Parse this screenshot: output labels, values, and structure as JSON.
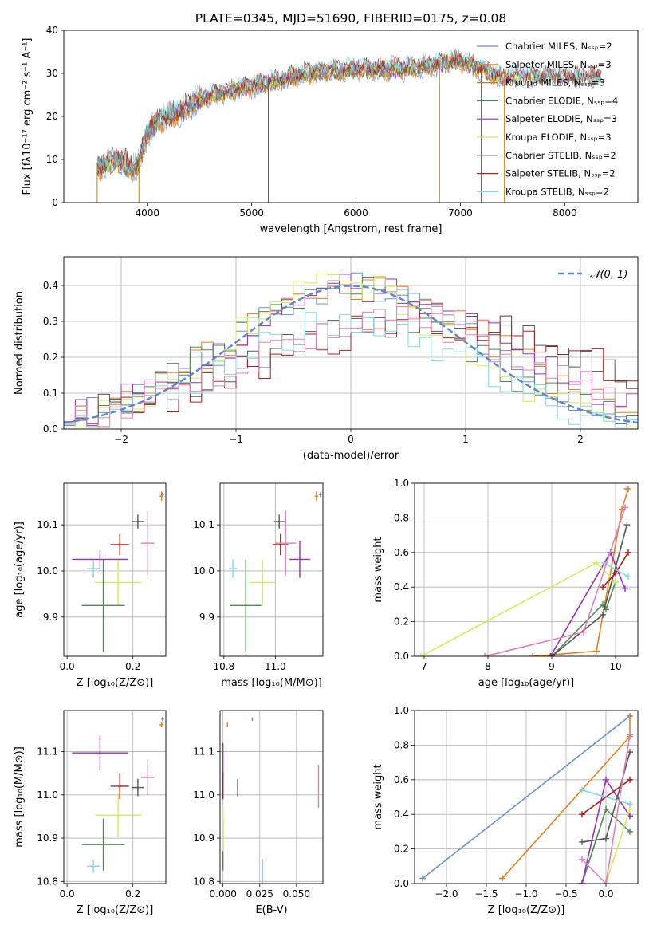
{
  "chart_data": [
    {
      "id": "spectrum",
      "type": "line",
      "title": "PLATE=0345, MJD=51690, FIBERID=0175, z=0.08",
      "xlabel": "wavelength [Angstrom, rest frame]",
      "ylabel": "Flux [fλ10⁻¹⁷ erg cm⁻² s⁻¹ A⁻¹]",
      "xlim": [
        3200,
        8700
      ],
      "ylim": [
        0,
        40
      ],
      "xticks": [
        "4000",
        "5000",
        "6000",
        "7000",
        "8000"
      ],
      "yticks": [
        "0",
        "10",
        "20",
        "30",
        "40"
      ],
      "grid": false,
      "legend_position": "upper right",
      "series": [
        {
          "name": "Chabrier MILES, Nₛₛₚ=2",
          "color": "#6a8fd8"
        },
        {
          "name": "Salpeter MILES, Nₛₛₚ=3",
          "color": "#e87f1e"
        },
        {
          "name": "Kroupa MILES, Nₛₛₚ=3",
          "color": "#c27f12"
        },
        {
          "name": "Chabrier ELODIE, Nₛₛₚ=4",
          "color": "#4e8a57"
        },
        {
          "name": "Salpeter ELODIE, Nₛₛₚ=3",
          "color": "#9a2fb5"
        },
        {
          "name": "Kroupa ELODIE, Nₛₛₚ=3",
          "color": "#d2ec5c"
        },
        {
          "name": "Chabrier STELIB, Nₛₛₚ=2",
          "color": "#555555"
        },
        {
          "name": "Salpeter STELIB, Nₛₛₚ=2",
          "color": "#b11a1a"
        },
        {
          "name": "Kroupa STELIB, Nₛₛₚ=2",
          "color": "#7fd8e3"
        }
      ],
      "trend": {
        "x": [
          3500,
          3700,
          3900,
          4000,
          4100,
          4300,
          4500,
          4800,
          5000,
          5200,
          5500,
          6000,
          6500,
          7000,
          7400
        ],
        "y": [
          8,
          10,
          8,
          16,
          19,
          21,
          24,
          26,
          27,
          28,
          30,
          31,
          31,
          33,
          29
        ]
      }
    },
    {
      "id": "residuals",
      "type": "line",
      "xlabel": "(data-model)/error",
      "ylabel": "Normed distribution",
      "xlim": [
        -2.5,
        2.5
      ],
      "ylim": [
        0,
        0.48
      ],
      "xticks": [
        "−2",
        "−1",
        "0",
        "1",
        "2"
      ],
      "yticks": [
        "0.0",
        "0.1",
        "0.2",
        "0.3",
        "0.4"
      ],
      "grid": true,
      "legend_position": "upper right",
      "legend": "𝒩(0, 1)",
      "gaussian": {
        "mean": 0,
        "sigma": 1,
        "color": "#5b86d6"
      },
      "step_colors": [
        "#6a8fd8",
        "#e87f1e",
        "#4e8a57",
        "#9a2fb5",
        "#d2ec5c",
        "#555555",
        "#b11a1a",
        "#7fd8e3",
        "#e37fb5"
      ]
    },
    {
      "id": "age_vs_Z",
      "type": "scatter",
      "xlabel": "Z [log₁₀(Z/Z⊙)]",
      "ylabel": "age  [log₁₀(age/yr)]",
      "xlim": [
        -0.01,
        0.3
      ],
      "ylim": [
        9.815,
        10.19
      ],
      "xticks": [
        "0.0",
        "0.2"
      ],
      "yticks": [
        "9.9",
        "10.0",
        "10.1"
      ],
      "grid": true,
      "points": [
        {
          "color": "#7fd8e3",
          "x": 0.08,
          "y": 10.005,
          "xerr": 0.02,
          "yerr": 0.02
        },
        {
          "color": "#d2ec5c",
          "x": 0.155,
          "y": 9.975,
          "xerr": 0.07,
          "yerr": 0.05
        },
        {
          "color": "#4e8a57",
          "x": 0.11,
          "y": 9.925,
          "xerr": 0.065,
          "yerr": 0.1
        },
        {
          "color": "#9a2fb5",
          "x": 0.1,
          "y": 10.025,
          "xerr": 0.085,
          "yerr": 0.02
        },
        {
          "color": "#b11a1a",
          "x": 0.16,
          "y": 10.057,
          "xerr": 0.028,
          "yerr": 0.023
        },
        {
          "color": "#555555",
          "x": 0.215,
          "y": 10.107,
          "xerr": 0.018,
          "yerr": 0.015
        },
        {
          "color": "#e37fb5",
          "x": 0.245,
          "y": 10.06,
          "xerr": 0.02,
          "yerr": 0.07
        },
        {
          "color": "#e87f1e",
          "x": 0.287,
          "y": 10.162,
          "xerr": 0.006,
          "yerr": 0.01
        },
        {
          "color": "#6a8fd8",
          "x": 0.29,
          "y": 10.165,
          "xerr": 0.004,
          "yerr": 0.005
        }
      ]
    },
    {
      "id": "age_vs_mass",
      "type": "scatter",
      "xlabel": "mass [log₁₀(M/M⊙)]",
      "ylabel": "",
      "xlim": [
        10.785,
        11.185
      ],
      "ylim": [
        9.815,
        10.19
      ],
      "xticks": [
        "10.8",
        "11.0"
      ],
      "yticks": [
        "9.9",
        "10.0",
        "10.1"
      ],
      "grid": true,
      "points": [
        {
          "color": "#7fd8e3",
          "x": 10.835,
          "y": 10.005,
          "xerr": 0.015,
          "yerr": 0.02
        },
        {
          "color": "#4e8a57",
          "x": 10.885,
          "y": 9.925,
          "xerr": 0.06,
          "yerr": 0.1
        },
        {
          "color": "#d2ec5c",
          "x": 10.95,
          "y": 9.975,
          "xerr": 0.05,
          "yerr": 0.05
        },
        {
          "color": "#555555",
          "x": 11.015,
          "y": 10.107,
          "xerr": 0.02,
          "yerr": 0.015
        },
        {
          "color": "#b11a1a",
          "x": 11.02,
          "y": 10.057,
          "xerr": 0.03,
          "yerr": 0.023
        },
        {
          "color": "#e37fb5",
          "x": 11.04,
          "y": 10.06,
          "xerr": 0.04,
          "yerr": 0.07
        },
        {
          "color": "#9a2fb5",
          "x": 11.095,
          "y": 10.025,
          "xerr": 0.04,
          "yerr": 0.04
        },
        {
          "color": "#e87f1e",
          "x": 11.16,
          "y": 10.162,
          "xerr": 0.006,
          "yerr": 0.01
        },
        {
          "color": "#6a8fd8",
          "x": 11.175,
          "y": 10.165,
          "xerr": 0.005,
          "yerr": 0.005
        }
      ]
    },
    {
      "id": "weight_vs_age",
      "type": "line",
      "xlabel": "age  [log₁₀(age/yr)]",
      "ylabel": "mass weight",
      "xlim": [
        6.85,
        10.35
      ],
      "ylim": [
        0,
        1
      ],
      "xticks": [
        "7",
        "8",
        "9",
        "10"
      ],
      "yticks": [
        "0.0",
        "0.2",
        "0.4",
        "0.6",
        "0.8",
        "1.0"
      ],
      "grid": true,
      "series": [
        {
          "color": "#6a8fd8",
          "x": [
            10.18
          ],
          "y": [
            0.968
          ]
        },
        {
          "color": "#e87f1e",
          "x": [
            8.7,
            9.7,
            10.1,
            10.2
          ],
          "y": [
            0.0,
            0.03,
            0.85,
            0.968
          ]
        },
        {
          "color": "#4e8a57",
          "x": [
            9.0,
            9.8,
            9.85,
            10.0
          ],
          "y": [
            0.0,
            0.3,
            0.27,
            0.43
          ]
        },
        {
          "color": "#9a2fb5",
          "x": [
            8.98,
            9.92,
            10.15
          ],
          "y": [
            0.0,
            0.6,
            0.39
          ]
        },
        {
          "color": "#d2ec5c",
          "x": [
            6.95,
            9.7,
            10.0
          ],
          "y": [
            0.0,
            0.54,
            0.43
          ]
        },
        {
          "color": "#555555",
          "x": [
            9.0,
            9.8,
            10.18
          ],
          "y": [
            0.0,
            0.24,
            0.76
          ]
        },
        {
          "color": "#b11a1a",
          "x": [
            9.8,
            10.0,
            10.2
          ],
          "y": [
            0.4,
            0.48,
            0.6
          ]
        },
        {
          "color": "#7fd8e3",
          "x": [
            9.82,
            10.2
          ],
          "y": [
            0.54,
            0.46
          ]
        },
        {
          "color": "#e37fb5",
          "x": [
            7.95,
            9.5,
            10.15
          ],
          "y": [
            0.0,
            0.14,
            0.86
          ]
        }
      ]
    },
    {
      "id": "mass_vs_Z",
      "type": "scatter",
      "xlabel": "Z [log₁₀(Z/Z⊙)]",
      "ylabel": "mass [log₁₀(M/M⊙)]",
      "xlim": [
        -0.01,
        0.3
      ],
      "ylim": [
        10.795,
        11.195
      ],
      "xticks": [
        "0.0",
        "0.2"
      ],
      "yticks": [
        "10.8",
        "10.9",
        "11.0",
        "11.1"
      ],
      "grid": true,
      "points": [
        {
          "color": "#7fd8e3",
          "x": 0.08,
          "y": 10.835,
          "xerr": 0.02,
          "yerr": 0.015
        },
        {
          "color": "#4e8a57",
          "x": 0.11,
          "y": 10.885,
          "xerr": 0.065,
          "yerr": 0.06
        },
        {
          "color": "#d2ec5c",
          "x": 0.155,
          "y": 10.953,
          "xerr": 0.07,
          "yerr": 0.05
        },
        {
          "color": "#b11a1a",
          "x": 0.16,
          "y": 11.02,
          "xerr": 0.028,
          "yerr": 0.03
        },
        {
          "color": "#9a2fb5",
          "x": 0.1,
          "y": 11.097,
          "xerr": 0.085,
          "yerr": 0.04
        },
        {
          "color": "#555555",
          "x": 0.215,
          "y": 11.017,
          "xerr": 0.018,
          "yerr": 0.02
        },
        {
          "color": "#e37fb5",
          "x": 0.245,
          "y": 11.04,
          "xerr": 0.02,
          "yerr": 0.04
        },
        {
          "color": "#e87f1e",
          "x": 0.287,
          "y": 11.162,
          "xerr": 0.006,
          "yerr": 0.006
        },
        {
          "color": "#6a8fd8",
          "x": 0.29,
          "y": 11.175,
          "xerr": 0.004,
          "yerr": 0.005
        }
      ]
    },
    {
      "id": "mass_vs_EBV",
      "type": "scatter",
      "xlabel": "E(B-V)",
      "ylabel": "",
      "xlim": [
        -0.002,
        0.068
      ],
      "ylim": [
        10.795,
        11.195
      ],
      "xticks": [
        "0.000",
        "0.025",
        "0.050"
      ],
      "yticks": [
        "10.8",
        "10.9",
        "11.0",
        "11.1"
      ],
      "grid": true,
      "points": [
        {
          "color": "#4e8a57",
          "x": 0.0,
          "y": 10.885,
          "xerr": 0,
          "yerr": 0.06
        },
        {
          "color": "#d2ec5c",
          "x": 0.0,
          "y": 10.92,
          "xerr": 0,
          "yerr": 0.05
        },
        {
          "color": "#9a2fb5",
          "x": 0.0,
          "y": 11.08,
          "xerr": 0,
          "yerr": 0.04
        },
        {
          "color": "#b11a1a",
          "x": 0.0,
          "y": 11.02,
          "xerr": 0,
          "yerr": 0.03
        },
        {
          "color": "#e87f1e",
          "x": 0.003,
          "y": 11.162,
          "xerr": 0,
          "yerr": 0.006
        },
        {
          "color": "#555555",
          "x": 0.01,
          "y": 11.017,
          "xerr": 0,
          "yerr": 0.02
        },
        {
          "color": "#6a8fd8",
          "x": 0.02,
          "y": 11.175,
          "xerr": 0,
          "yerr": 0.004
        },
        {
          "color": "#7fd8e3",
          "x": 0.027,
          "y": 10.82,
          "xerr": 0,
          "yerr": 0.03
        },
        {
          "color": "#e37fb5",
          "x": 0.065,
          "y": 11.02,
          "xerr": 0,
          "yerr": 0.05
        }
      ]
    },
    {
      "id": "weight_vs_Z",
      "type": "line",
      "xlabel": "Z [log₁₀(Z/Z⊙)]",
      "ylabel": "mass weight",
      "xlim": [
        -2.4,
        0.4
      ],
      "ylim": [
        0,
        1
      ],
      "xticks": [
        "−2.0",
        "−1.5",
        "−1.0",
        "−0.5",
        "0.0"
      ],
      "yticks": [
        "0.0",
        "0.2",
        "0.4",
        "0.6",
        "0.8",
        "1.0"
      ],
      "grid": true,
      "series": [
        {
          "color": "#6a8fd8",
          "x": [
            -2.3,
            0.3
          ],
          "y": [
            0.03,
            0.968
          ]
        },
        {
          "color": "#e87f1e",
          "x": [
            -1.3,
            0.3,
            0.3
          ],
          "y": [
            0.03,
            0.85,
            0.968
          ]
        },
        {
          "color": "#4e8a57",
          "x": [
            -0.3,
            0.0,
            0.3
          ],
          "y": [
            0.0,
            0.43,
            0.3
          ]
        },
        {
          "color": "#9a2fb5",
          "x": [
            -0.3,
            0.0,
            0.3
          ],
          "y": [
            0.0,
            0.6,
            0.39
          ]
        },
        {
          "color": "#d2ec5c",
          "x": [
            0.0,
            0.3
          ],
          "y": [
            0.0,
            0.43
          ]
        },
        {
          "color": "#555555",
          "x": [
            -0.3,
            0.0,
            0.3
          ],
          "y": [
            0.24,
            0.26,
            0.76
          ]
        },
        {
          "color": "#b11a1a",
          "x": [
            -0.3,
            0.3
          ],
          "y": [
            0.4,
            0.6
          ]
        },
        {
          "color": "#7fd8e3",
          "x": [
            -0.3,
            0.3
          ],
          "y": [
            0.54,
            0.46
          ]
        },
        {
          "color": "#e37fb5",
          "x": [
            -0.3,
            0.0,
            0.3
          ],
          "y": [
            0.14,
            0.0,
            0.86
          ]
        }
      ]
    }
  ]
}
